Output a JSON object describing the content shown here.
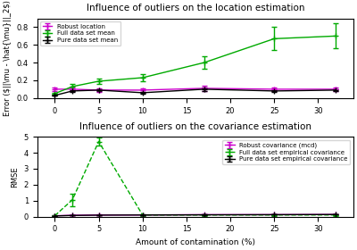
{
  "chart_data": [
    {
      "type": "line",
      "title": "Influence of outliers on the location estimation",
      "y_label": "Error ($||\\mu - \\hat{\\mu}||_2$)",
      "x": [
        0,
        2,
        5,
        10,
        17,
        25,
        32
      ],
      "xlim": [
        -2,
        34
      ],
      "xticks": [
        0,
        5,
        10,
        15,
        20,
        25,
        30
      ],
      "ylim": [
        0.0,
        0.9
      ],
      "yticks": [
        0.0,
        0.2,
        0.4,
        0.6,
        0.8
      ],
      "legend": "upper left",
      "marker": "plus",
      "series": [
        {
          "name": "Robust location",
          "color": "#cc00cc",
          "line_style": "solid",
          "values": [
            0.1,
            0.1,
            0.09,
            0.09,
            0.11,
            0.1,
            0.1
          ],
          "yerr": [
            0.02,
            0.02,
            0.02,
            0.02,
            0.03,
            0.02,
            0.02
          ]
        },
        {
          "name": "Full data set mean",
          "color": "#00aa00",
          "line_style": "solid",
          "values": [
            0.05,
            0.13,
            0.19,
            0.23,
            0.4,
            0.67,
            0.7
          ],
          "yerr": [
            0.01,
            0.03,
            0.03,
            0.04,
            0.07,
            0.13,
            0.14
          ]
        },
        {
          "name": "Pure data set mean",
          "color": "#000000",
          "line_style": "solid",
          "values": [
            0.03,
            0.08,
            0.09,
            0.06,
            0.1,
            0.08,
            0.09
          ],
          "yerr": [
            0.005,
            0.01,
            0.01,
            0.01,
            0.02,
            0.01,
            0.01
          ]
        }
      ]
    },
    {
      "type": "line",
      "title": "Influence of outliers on the covariance estimation",
      "x_label": "Amount of contamination (%)",
      "y_label": "RMSE",
      "x": [
        0,
        2,
        5,
        10,
        17,
        25,
        32
      ],
      "xlim": [
        -2,
        34
      ],
      "xticks": [
        0,
        5,
        10,
        15,
        20,
        25,
        30
      ],
      "ylim": [
        0,
        5
      ],
      "yticks": [
        0,
        1,
        2,
        3,
        4,
        5
      ],
      "legend": "upper right",
      "marker": "plus",
      "series": [
        {
          "name": "Robust covariance (mcd)",
          "color": "#cc00cc",
          "line_style": "solid",
          "values": [
            0.05,
            0.08,
            0.1,
            0.1,
            0.12,
            0.12,
            0.13
          ],
          "yerr": [
            0.01,
            0.02,
            0.02,
            0.02,
            0.02,
            0.02,
            0.02
          ]
        },
        {
          "name": "Full data set empirical covariance",
          "color": "#00aa00",
          "line_style": "dashed",
          "values": [
            0.05,
            1.05,
            4.7,
            0.1,
            0.1,
            0.1,
            0.1
          ],
          "yerr": [
            0.02,
            0.4,
            0.25,
            0.05,
            0.05,
            0.05,
            0.05
          ]
        },
        {
          "name": "Pure data set empirical covariance",
          "color": "#000000",
          "line_style": "solid",
          "values": [
            0.04,
            0.07,
            0.09,
            0.1,
            0.11,
            0.12,
            0.13
          ],
          "yerr": [
            0.005,
            0.01,
            0.01,
            0.01,
            0.01,
            0.01,
            0.01
          ]
        }
      ]
    }
  ]
}
